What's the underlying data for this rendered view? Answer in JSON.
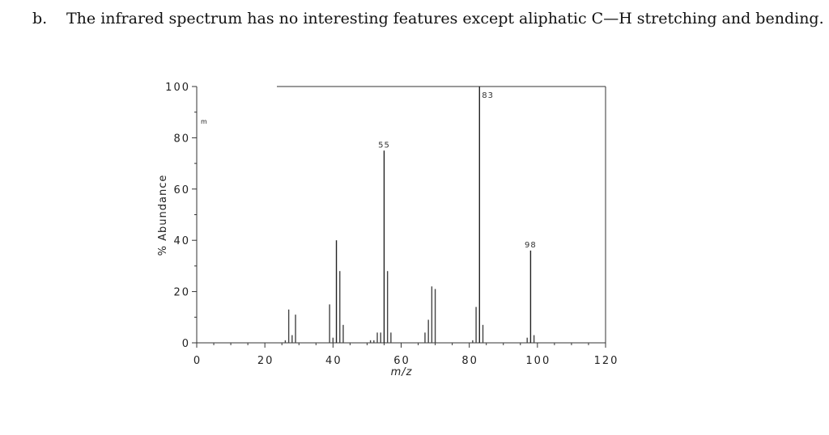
{
  "question": {
    "label": "b.",
    "text": "The infrared spectrum has no interesting features except aliphatic C—H stretching and bending."
  },
  "chart_data": {
    "type": "bar",
    "title": "",
    "xlabel": "m/z",
    "ylabel": "% Abundance",
    "xlim": [
      0,
      120
    ],
    "ylim": [
      0,
      100
    ],
    "xticks": [
      0,
      20,
      40,
      60,
      80,
      100,
      120
    ],
    "yticks": [
      0,
      20,
      40,
      60,
      80,
      100
    ],
    "x_tick_labels": [
      "0",
      "20",
      "40",
      "60",
      "80",
      "100",
      "120"
    ],
    "y_tick_labels": [
      "0",
      "20",
      "40",
      "60",
      "80",
      "100"
    ],
    "corner_label": "m",
    "peaks": [
      {
        "mz": 26,
        "abundance": 1
      },
      {
        "mz": 27,
        "abundance": 13
      },
      {
        "mz": 28,
        "abundance": 3
      },
      {
        "mz": 29,
        "abundance": 11
      },
      {
        "mz": 39,
        "abundance": 15
      },
      {
        "mz": 40,
        "abundance": 2
      },
      {
        "mz": 41,
        "abundance": 40
      },
      {
        "mz": 42,
        "abundance": 28
      },
      {
        "mz": 43,
        "abundance": 7
      },
      {
        "mz": 51,
        "abundance": 1
      },
      {
        "mz": 52,
        "abundance": 1
      },
      {
        "mz": 53,
        "abundance": 4
      },
      {
        "mz": 54,
        "abundance": 4
      },
      {
        "mz": 55,
        "abundance": 75
      },
      {
        "mz": 56,
        "abundance": 28
      },
      {
        "mz": 57,
        "abundance": 4
      },
      {
        "mz": 67,
        "abundance": 4
      },
      {
        "mz": 68,
        "abundance": 9
      },
      {
        "mz": 69,
        "abundance": 22
      },
      {
        "mz": 70,
        "abundance": 21
      },
      {
        "mz": 81,
        "abundance": 1
      },
      {
        "mz": 82,
        "abundance": 14
      },
      {
        "mz": 83,
        "abundance": 100
      },
      {
        "mz": 84,
        "abundance": 7
      },
      {
        "mz": 97,
        "abundance": 2
      },
      {
        "mz": 98,
        "abundance": 36
      },
      {
        "mz": 99,
        "abundance": 3
      }
    ],
    "peak_labels": [
      {
        "mz": 55,
        "text": "55"
      },
      {
        "mz": 83,
        "text": "83"
      },
      {
        "mz": 98,
        "text": "98"
      }
    ]
  }
}
